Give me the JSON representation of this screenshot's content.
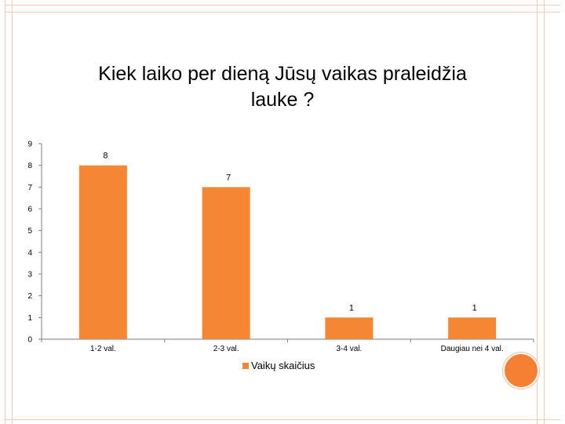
{
  "colors": {
    "bar": "#f58634",
    "frame": "#f6c9b8",
    "accent": "#f58034"
  },
  "chart_data": {
    "type": "bar",
    "title": "Kiek laiko per dieną Jūsų vaikas praleidžia lauke ?",
    "categories": [
      "1-2 val.",
      "2-3 val.",
      "3-4 val.",
      "Daugiau nei 4 val."
    ],
    "series": [
      {
        "name": "Vaikų skaičius",
        "values": [
          8,
          7,
          1,
          1
        ]
      }
    ],
    "ylim": [
      0,
      9
    ],
    "yticks": [
      "0",
      "1",
      "2",
      "3",
      "4",
      "5",
      "6",
      "7",
      "8",
      "9"
    ],
    "data_labels": [
      "8",
      "7",
      "1",
      "1"
    ],
    "legend_position": "bottom",
    "grid": false
  }
}
